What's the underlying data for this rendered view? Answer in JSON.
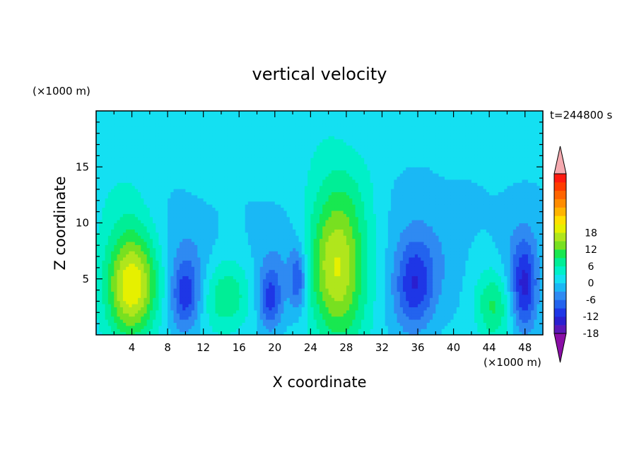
{
  "chart_data": {
    "type": "heatmap",
    "title": "vertical velocity",
    "xlabel": "X coordinate",
    "ylabel": "Z coordinate",
    "x_unit": "(×1000 m)",
    "y_unit": "(×1000 m)",
    "time_label": "t=244800 s",
    "xlim": [
      0,
      50
    ],
    "ylim": [
      0,
      20
    ],
    "x_ticks": [
      4,
      8,
      12,
      16,
      20,
      24,
      28,
      32,
      36,
      40,
      44,
      48
    ],
    "y_ticks": [
      5,
      10,
      15
    ],
    "colorbar": {
      "min": -21,
      "max": 21,
      "step": 3,
      "tick_labels": [
        18,
        12,
        6,
        0,
        -6,
        -12,
        -18
      ],
      "colors": [
        "#8a0ea6",
        "#5a17b8",
        "#2a1fcf",
        "#1e36e6",
        "#2363ee",
        "#2f8af2",
        "#1ab8f5",
        "#14e0f2",
        "#00f0c8",
        "#00ee96",
        "#18e850",
        "#78e020",
        "#b0e61c",
        "#e6f000",
        "#ffe000",
        "#ffb400",
        "#ff8c00",
        "#ff6400",
        "#ff3c00",
        "#ff1a10",
        "#f5aab0"
      ]
    },
    "features": [
      {
        "x": 4.0,
        "z": 4.3,
        "sx": 2.0,
        "sz": 3.2,
        "w": 19
      },
      {
        "x": 27.0,
        "z": 5.8,
        "sx": 2.3,
        "sz": 4.6,
        "w": 17
      },
      {
        "x": 14.6,
        "z": 3.4,
        "sx": 1.9,
        "sz": 2.2,
        "w": 8
      },
      {
        "x": 44.4,
        "z": 2.6,
        "sx": 1.4,
        "sz": 2.3,
        "w": 9
      },
      {
        "x": 3.5,
        "z": 9.5,
        "sx": 2.5,
        "sz": 4.0,
        "w": 3
      },
      {
        "x": 27.0,
        "z": 13.0,
        "sx": 3.0,
        "sz": 4.0,
        "w": 3
      },
      {
        "x": 10.0,
        "z": 3.5,
        "sx": 1.2,
        "sz": 2.3,
        "w": -11
      },
      {
        "x": 19.5,
        "z": 3.2,
        "sx": 0.9,
        "sz": 2.0,
        "w": -10
      },
      {
        "x": 22.6,
        "z": 5.0,
        "sx": 0.7,
        "sz": 2.0,
        "w": -10
      },
      {
        "x": 35.6,
        "z": 4.5,
        "sx": 1.6,
        "sz": 2.8,
        "w": -11
      },
      {
        "x": 47.9,
        "z": 4.2,
        "sx": 1.0,
        "sz": 2.8,
        "w": -12
      },
      {
        "x": 10.0,
        "z": 8.0,
        "sx": 2.5,
        "sz": 3.5,
        "w": -3
      },
      {
        "x": 20.5,
        "z": 7.0,
        "sx": 2.5,
        "sz": 4.0,
        "w": -3
      },
      {
        "x": 37.0,
        "z": 8.0,
        "sx": 3.5,
        "sz": 4.5,
        "w": -3
      },
      {
        "x": 47.5,
        "z": 8.0,
        "sx": 2.0,
        "sz": 4.0,
        "w": -3
      }
    ]
  }
}
